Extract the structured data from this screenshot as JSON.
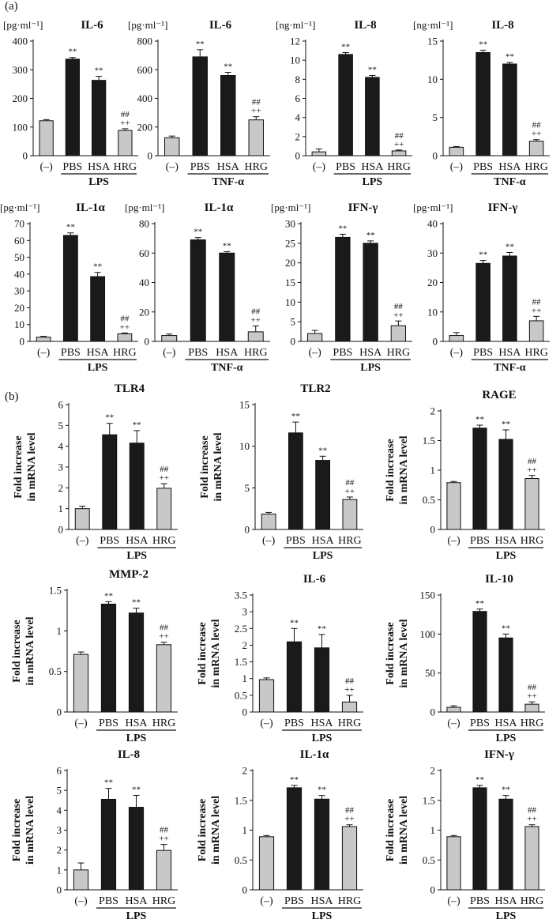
{
  "panels": {
    "a": "(a)",
    "b": "(b)"
  },
  "ylabel_mrna": [
    "Fold increase",
    "in mRNA level"
  ],
  "chart_data": [
    {
      "type": "bar",
      "title": "IL-6",
      "unit": "[pg·ml⁻¹]",
      "categories": [
        "(–)",
        "PBS",
        "HSA",
        "HRG"
      ],
      "values": [
        122,
        337,
        263,
        88
      ],
      "errors": [
        4,
        6,
        14,
        6
      ],
      "ylim": [
        0,
        400
      ],
      "ticks": [
        0,
        100,
        200,
        300,
        400
      ],
      "tick_labels": [
        "0",
        "100",
        "200",
        "300",
        "400"
      ],
      "annotations": [
        "",
        "**",
        "**",
        "##\n++"
      ],
      "group": "LPS",
      "colors": [
        "#c8c8c8",
        "#1a1a1a",
        "#1a1a1a",
        "#c8c8c8"
      ]
    },
    {
      "type": "bar",
      "title": "IL-6",
      "unit": "[pg·ml⁻¹]",
      "categories": [
        "(–)",
        "PBS",
        "HSA",
        "HRG"
      ],
      "values": [
        125,
        690,
        560,
        250
      ],
      "errors": [
        12,
        50,
        22,
        22
      ],
      "ylim": [
        0,
        800
      ],
      "ticks": [
        0,
        200,
        400,
        600,
        800
      ],
      "tick_labels": [
        "0",
        "200",
        "400",
        "600",
        "800"
      ],
      "annotations": [
        "",
        "**",
        "**",
        "##\n++"
      ],
      "group": "TNF-α",
      "colors": [
        "#c8c8c8",
        "#1a1a1a",
        "#1a1a1a",
        "#c8c8c8"
      ]
    },
    {
      "type": "bar",
      "title": "IL-8",
      "unit": "[ng·ml⁻¹]",
      "categories": [
        "(–)",
        "PBS",
        "HSA",
        "HRG"
      ],
      "values": [
        0.4,
        10.6,
        8.2,
        0.5
      ],
      "errors": [
        0.3,
        0.2,
        0.2,
        0.1
      ],
      "ylim": [
        0,
        12
      ],
      "ticks": [
        0,
        2,
        4,
        6,
        8,
        10,
        12
      ],
      "tick_labels": [
        "0",
        "2",
        "4",
        "6",
        "8",
        "10",
        "12"
      ],
      "annotations": [
        "",
        "**",
        "**",
        "##\n++"
      ],
      "group": "LPS",
      "colors": [
        "#c8c8c8",
        "#1a1a1a",
        "#1a1a1a",
        "#c8c8c8"
      ]
    },
    {
      "type": "bar",
      "title": "IL-8",
      "unit": "[ng·ml⁻¹]",
      "categories": [
        "(–)",
        "PBS",
        "HSA",
        "HRG"
      ],
      "values": [
        1.1,
        13.5,
        12.0,
        1.9
      ],
      "errors": [
        0.1,
        0.3,
        0.2,
        0.2
      ],
      "ylim": [
        0,
        15
      ],
      "ticks": [
        0,
        5,
        10,
        15
      ],
      "tick_labels": [
        "0",
        "5",
        "10",
        "15"
      ],
      "annotations": [
        "",
        "**",
        "**",
        "##\n++"
      ],
      "group": "TNF-α",
      "colors": [
        "#c8c8c8",
        "#1a1a1a",
        "#1a1a1a",
        "#c8c8c8"
      ]
    },
    {
      "type": "bar",
      "title": "IL-1α",
      "unit": "[pg·ml⁻¹]",
      "categories": [
        "(–)",
        "PBS",
        "HSA",
        "HRG"
      ],
      "values": [
        2.5,
        63,
        38.5,
        4.5
      ],
      "errors": [
        0.5,
        1.5,
        2.5,
        0.5
      ],
      "ylim": [
        0,
        70
      ],
      "ticks": [
        0,
        10,
        20,
        30,
        40,
        50,
        60,
        70
      ],
      "tick_labels": [
        "0",
        "10",
        "20",
        "30",
        "40",
        "50",
        "60",
        "70"
      ],
      "annotations": [
        "",
        "**",
        "**",
        "##\n++"
      ],
      "group": "LPS",
      "colors": [
        "#c8c8c8",
        "#1a1a1a",
        "#1a1a1a",
        "#c8c8c8"
      ]
    },
    {
      "type": "bar",
      "title": "IL-1α",
      "unit": "[pg·ml⁻¹]",
      "categories": [
        "(–)",
        "PBS",
        "HSA",
        "HRG"
      ],
      "values": [
        4,
        69,
        60,
        6.5
      ],
      "errors": [
        1,
        1.5,
        1,
        4
      ],
      "ylim": [
        0,
        80
      ],
      "ticks": [
        0,
        20,
        40,
        60,
        80
      ],
      "tick_labels": [
        "0",
        "20",
        "40",
        "60",
        "80"
      ],
      "annotations": [
        "",
        "**",
        "**",
        "##\n++"
      ],
      "group": "TNF-α",
      "colors": [
        "#c8c8c8",
        "#1a1a1a",
        "#1a1a1a",
        "#c8c8c8"
      ]
    },
    {
      "type": "bar",
      "title": "IFN-γ",
      "unit": "[pg·ml⁻¹]",
      "categories": [
        "(–)",
        "PBS",
        "HSA",
        "HRG"
      ],
      "values": [
        2,
        26.5,
        25,
        4
      ],
      "errors": [
        0.8,
        0.8,
        0.6,
        1.2
      ],
      "ylim": [
        0,
        30
      ],
      "ticks": [
        0,
        5,
        10,
        15,
        20,
        25,
        30
      ],
      "tick_labels": [
        "0",
        "5",
        "10",
        "15",
        "20",
        "25",
        "30"
      ],
      "annotations": [
        "",
        "**",
        "**",
        "##\n++"
      ],
      "group": "LPS",
      "colors": [
        "#c8c8c8",
        "#1a1a1a",
        "#1a1a1a",
        "#c8c8c8"
      ]
    },
    {
      "type": "bar",
      "title": "IFN-γ",
      "unit": "[pg·ml⁻¹]",
      "categories": [
        "(–)",
        "PBS",
        "HSA",
        "HRG"
      ],
      "values": [
        2,
        26.5,
        29,
        7
      ],
      "errors": [
        1,
        1,
        1.2,
        1.5
      ],
      "ylim": [
        0,
        40
      ],
      "ticks": [
        0,
        10,
        20,
        30,
        40
      ],
      "tick_labels": [
        "0",
        "10",
        "20",
        "30",
        "40"
      ],
      "annotations": [
        "",
        "**",
        "**",
        "##\n++"
      ],
      "group": "TNF-α",
      "colors": [
        "#c8c8c8",
        "#1a1a1a",
        "#1a1a1a",
        "#c8c8c8"
      ]
    },
    {
      "type": "bar",
      "title": "TLR4",
      "categories": [
        "(–)",
        "PBS",
        "HSA",
        "HRG"
      ],
      "values": [
        1.0,
        4.55,
        4.15,
        1.98
      ],
      "errors": [
        0.12,
        0.55,
        0.6,
        0.22
      ],
      "ylim": [
        0,
        6
      ],
      "ticks": [
        0,
        1,
        2,
        3,
        4,
        5,
        6
      ],
      "tick_labels": [
        "0",
        "1",
        "2",
        "3",
        "4",
        "5",
        "6"
      ],
      "annotations": [
        "",
        "**",
        "**",
        "##\n++"
      ],
      "group": "LPS",
      "colors": [
        "#c8c8c8",
        "#1a1a1a",
        "#1a1a1a",
        "#c8c8c8"
      ]
    },
    {
      "type": "bar",
      "title": "TLR2",
      "categories": [
        "(–)",
        "PBS",
        "HSA",
        "HRG"
      ],
      "values": [
        1.85,
        11.6,
        8.3,
        3.6
      ],
      "errors": [
        0.2,
        1.3,
        0.5,
        0.3
      ],
      "ylim": [
        0,
        15
      ],
      "ticks": [
        0,
        5,
        10,
        15
      ],
      "tick_labels": [
        "0",
        "5",
        "10",
        "15"
      ],
      "annotations": [
        "",
        "**",
        "**",
        "##\n++"
      ],
      "group": "LPS",
      "colors": [
        "#c8c8c8",
        "#1a1a1a",
        "#1a1a1a",
        "#c8c8c8"
      ]
    },
    {
      "type": "bar",
      "title": "RAGE",
      "categories": [
        "(–)",
        "PBS",
        "HSA",
        "HRG"
      ],
      "values": [
        0.79,
        1.71,
        1.52,
        0.86
      ],
      "errors": [
        0.02,
        0.05,
        0.16,
        0.05
      ],
      "ylim": [
        0,
        2
      ],
      "ticks": [
        0,
        0.5,
        1,
        1.5,
        2
      ],
      "tick_labels": [
        "0",
        "0.5",
        "1",
        "1.5",
        "2"
      ],
      "annotations": [
        "",
        "**",
        "**",
        "##\n++"
      ],
      "group": "LPS",
      "colors": [
        "#c8c8c8",
        "#1a1a1a",
        "#1a1a1a",
        "#c8c8c8"
      ]
    },
    {
      "type": "bar",
      "title": "MMP-2",
      "categories": [
        "(–)",
        "PBS",
        "HSA",
        "HRG"
      ],
      "values": [
        0.71,
        1.33,
        1.22,
        0.83
      ],
      "errors": [
        0.03,
        0.03,
        0.06,
        0.03
      ],
      "ylim": [
        0,
        1.5
      ],
      "ticks": [
        0,
        0.5,
        1,
        1.5
      ],
      "tick_labels": [
        "0",
        "0.5",
        "1",
        "1.5"
      ],
      "annotations": [
        "",
        "**",
        "**",
        "##\n++"
      ],
      "group": "LPS",
      "colors": [
        "#c8c8c8",
        "#1a1a1a",
        "#1a1a1a",
        "#c8c8c8"
      ]
    },
    {
      "type": "bar",
      "title": "IL-6",
      "categories": [
        "(–)",
        "PBS",
        "HSA",
        "HRG"
      ],
      "values": [
        0.97,
        2.1,
        1.92,
        0.3
      ],
      "errors": [
        0.05,
        0.4,
        0.4,
        0.2
      ],
      "ylim": [
        0,
        3.5
      ],
      "ticks": [
        0,
        0.5,
        1,
        1.5,
        2,
        2.5,
        3,
        3.5
      ],
      "tick_labels": [
        "0",
        "0.5",
        "1",
        "1.5",
        "2",
        "2.5",
        "3",
        "3.5"
      ],
      "annotations": [
        "",
        "**",
        "**",
        "##\n++"
      ],
      "group": "LPS",
      "colors": [
        "#c8c8c8",
        "#1a1a1a",
        "#1a1a1a",
        "#c8c8c8"
      ]
    },
    {
      "type": "bar",
      "title": "IL-10",
      "categories": [
        "(–)",
        "PBS",
        "HSA",
        "HRG"
      ],
      "values": [
        6,
        129,
        95,
        10
      ],
      "errors": [
        2,
        3,
        5,
        3
      ],
      "ylim": [
        0,
        150
      ],
      "ticks": [
        0,
        50,
        100,
        150
      ],
      "tick_labels": [
        "0",
        "50",
        "100",
        "150"
      ],
      "annotations": [
        "",
        "**",
        "**",
        "##\n++"
      ],
      "group": "LPS",
      "colors": [
        "#c8c8c8",
        "#1a1a1a",
        "#1a1a1a",
        "#c8c8c8"
      ]
    },
    {
      "type": "bar",
      "title": "IL-8",
      "categories": [
        "(–)",
        "PBS",
        "HSA",
        "HRG"
      ],
      "values": [
        1.0,
        4.55,
        4.15,
        1.98
      ],
      "errors": [
        0.35,
        0.55,
        0.6,
        0.3
      ],
      "ylim": [
        0,
        6
      ],
      "ticks": [
        0,
        1,
        2,
        3,
        4,
        5,
        6
      ],
      "tick_labels": [
        "0",
        "1",
        "2",
        "3",
        "4",
        "5",
        "6"
      ],
      "annotations": [
        "",
        "**",
        "**",
        "##\n++"
      ],
      "group": "LPS",
      "colors": [
        "#c8c8c8",
        "#1a1a1a",
        "#1a1a1a",
        "#c8c8c8"
      ]
    },
    {
      "type": "bar",
      "title": "IL-1α",
      "categories": [
        "(–)",
        "PBS",
        "HSA",
        "HRG"
      ],
      "values": [
        0.89,
        1.71,
        1.52,
        1.06
      ],
      "errors": [
        0.02,
        0.04,
        0.06,
        0.03
      ],
      "ylim": [
        0,
        2
      ],
      "ticks": [
        0,
        0.5,
        1,
        1.5,
        2
      ],
      "tick_labels": [
        "0",
        "0.5",
        "1",
        "1.5",
        "2"
      ],
      "annotations": [
        "",
        "**",
        "**",
        "##\n++"
      ],
      "group": "LPS",
      "colors": [
        "#c8c8c8",
        "#1a1a1a",
        "#1a1a1a",
        "#c8c8c8"
      ]
    },
    {
      "type": "bar",
      "title": "IFN-γ",
      "categories": [
        "(–)",
        "PBS",
        "HSA",
        "HRG"
      ],
      "values": [
        0.89,
        1.71,
        1.52,
        1.06
      ],
      "errors": [
        0.02,
        0.04,
        0.06,
        0.03
      ],
      "ylim": [
        0,
        2
      ],
      "ticks": [
        0,
        0.5,
        1,
        1.5,
        2
      ],
      "tick_labels": [
        "0",
        "0.5",
        "1",
        "1.5",
        "2"
      ],
      "annotations": [
        "",
        "**",
        "**",
        "##\n++"
      ],
      "group": "LPS",
      "colors": [
        "#c8c8c8",
        "#1a1a1a",
        "#1a1a1a",
        "#c8c8c8"
      ]
    }
  ]
}
